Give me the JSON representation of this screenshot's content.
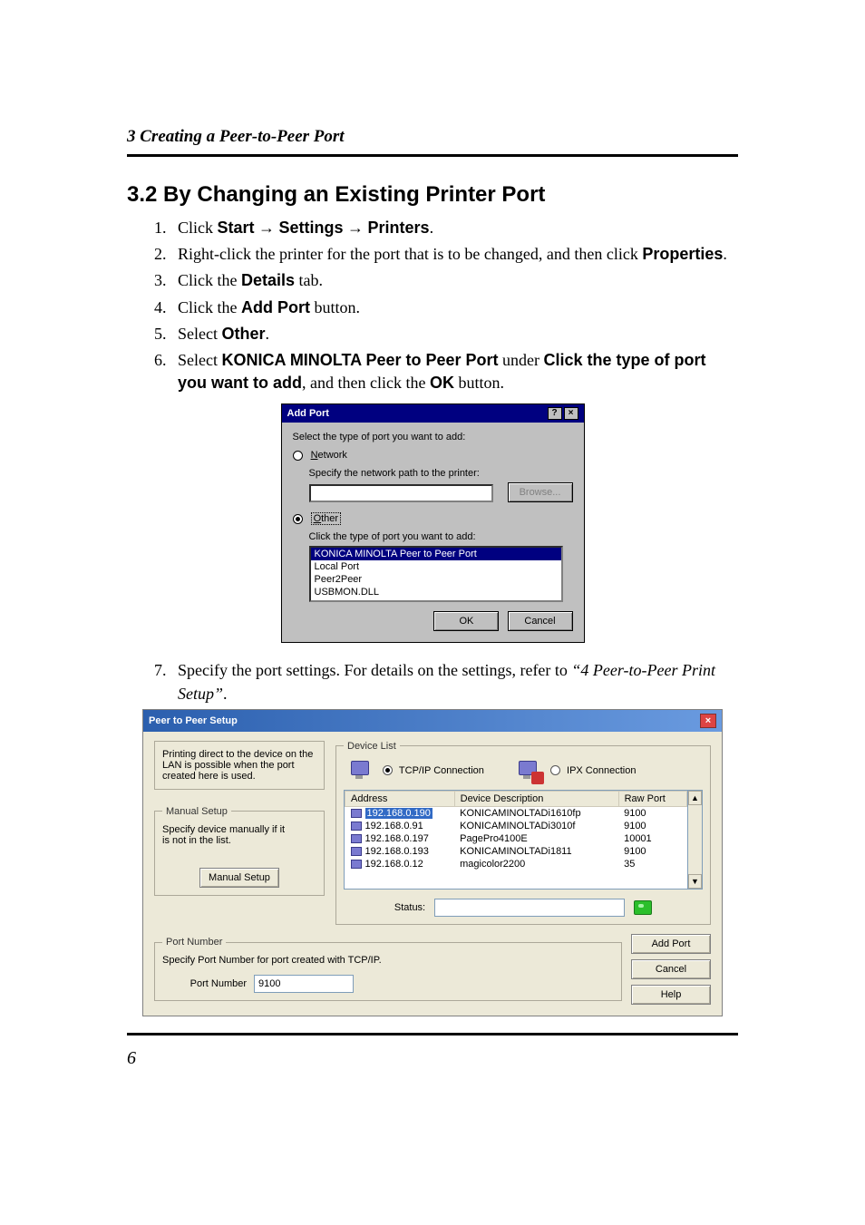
{
  "header_section_label": "3  Creating a Peer-to-Peer Port",
  "section_title": "3.2  By Changing an Existing Printer Port",
  "steps": {
    "s1_pre": "Click ",
    "s1_b1": "Start",
    "s1_arrow1": " → ",
    "s1_b2": "Settings",
    "s1_arrow2": " → ",
    "s1_b3": "Printers",
    "s1_post": ".",
    "s2_pre": "Right-click the printer for the port that is to be changed, and then click ",
    "s2_b": "Properties",
    "s2_post": ".",
    "s3_pre": "Click the ",
    "s3_b": "Details",
    "s3_post": " tab.",
    "s4_pre": "Click the ",
    "s4_b": "Add Port",
    "s4_post": " button.",
    "s5_pre": "Select ",
    "s5_b": "Other",
    "s5_post": ".",
    "s6_pre": "Select ",
    "s6_b1": "KONICA MINOLTA Peer to Peer Port",
    "s6_mid": " under ",
    "s6_b2": "Click the type of port you want to add",
    "s6_mid2": ", and then click the ",
    "s6_b3": "OK",
    "s6_post": " button.",
    "s7_pre": "Specify the port settings. For details on the settings, refer to ",
    "s7_i": "“4 Peer-to-Peer Print Setup”",
    "s7_post": "."
  },
  "addport": {
    "title": "Add Port",
    "help_btn": "?",
    "close_btn": "×",
    "intro": "Select the type of port you want to add:",
    "network_label_pre": "N",
    "network_label_rest": "etwork",
    "network_sub": "Specify the network path to the printer:",
    "browse_btn": "Browse...",
    "other_label_pre": "O",
    "other_label_rest": "ther",
    "other_sub": "Click the type of port you want to add:",
    "list_sel": "KONICA MINOLTA Peer to Peer Port",
    "list_1": "Local Port",
    "list_2": "Peer2Peer",
    "list_3": "USBMON.DLL",
    "ok_btn": "OK",
    "cancel_btn": "Cancel"
  },
  "p2p": {
    "title": "Peer to Peer Setup",
    "close_btn": "×",
    "desc_line1": "Printing direct to the device on the",
    "desc_line2": "LAN is possible when the port",
    "desc_line3": "created here is used.",
    "manual_legend": "Manual Setup",
    "manual_hint1": "Specify device manually if it",
    "manual_hint2": "is not in the list.",
    "manual_btn": "Manual Setup",
    "devlist_legend": "Device List",
    "tcpip_label": "TCP/IP Connection",
    "ipx_label": "IPX Connection",
    "col_address": "Address",
    "col_desc": "Device Description",
    "col_raw": "Raw Port",
    "rows": [
      {
        "addr": "192.168.0.190",
        "desc": "KONICAMINOLTADi1610fp",
        "raw": "9100",
        "sel": true
      },
      {
        "addr": "192.168.0.91",
        "desc": "KONICAMINOLTADi3010f",
        "raw": "9100",
        "sel": false
      },
      {
        "addr": "192.168.0.197",
        "desc": "PagePro4100E",
        "raw": "10001",
        "sel": false
      },
      {
        "addr": "192.168.0.193",
        "desc": "KONICAMINOLTADi1811",
        "raw": "9100",
        "sel": false
      },
      {
        "addr": "192.168.0.12",
        "desc": "magicolor2200",
        "raw": "35",
        "sel": false
      }
    ],
    "status_label": "Status:",
    "portnum_legend": "Port Number",
    "portnum_hint": "Specify Port Number for port created with TCP/IP.",
    "portnum_label": "Port Number",
    "portnum_value": "9100",
    "addport_btn": "Add Port",
    "cancel_btn": "Cancel",
    "help_btn": "Help",
    "scroll_up": "▲",
    "scroll_down": "▼"
  },
  "page_number": "6"
}
